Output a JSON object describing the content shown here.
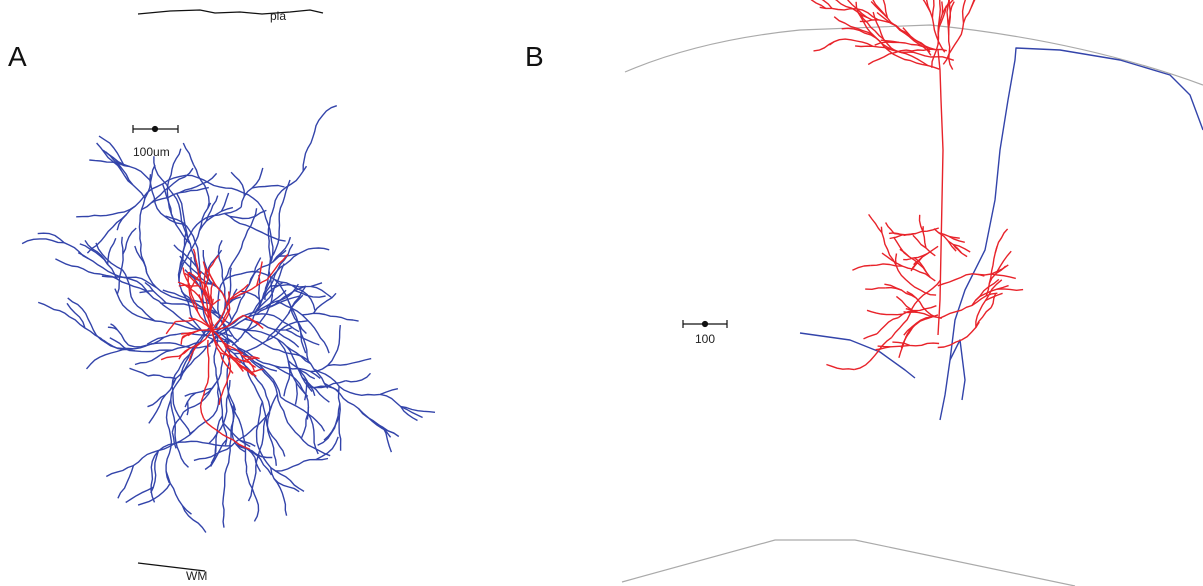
{
  "panels": [
    {
      "label": "A",
      "pia_label": "pia",
      "scale_label": "100um",
      "wm_label": "WM"
    },
    {
      "label": "B",
      "scale_label": "100"
    }
  ]
}
